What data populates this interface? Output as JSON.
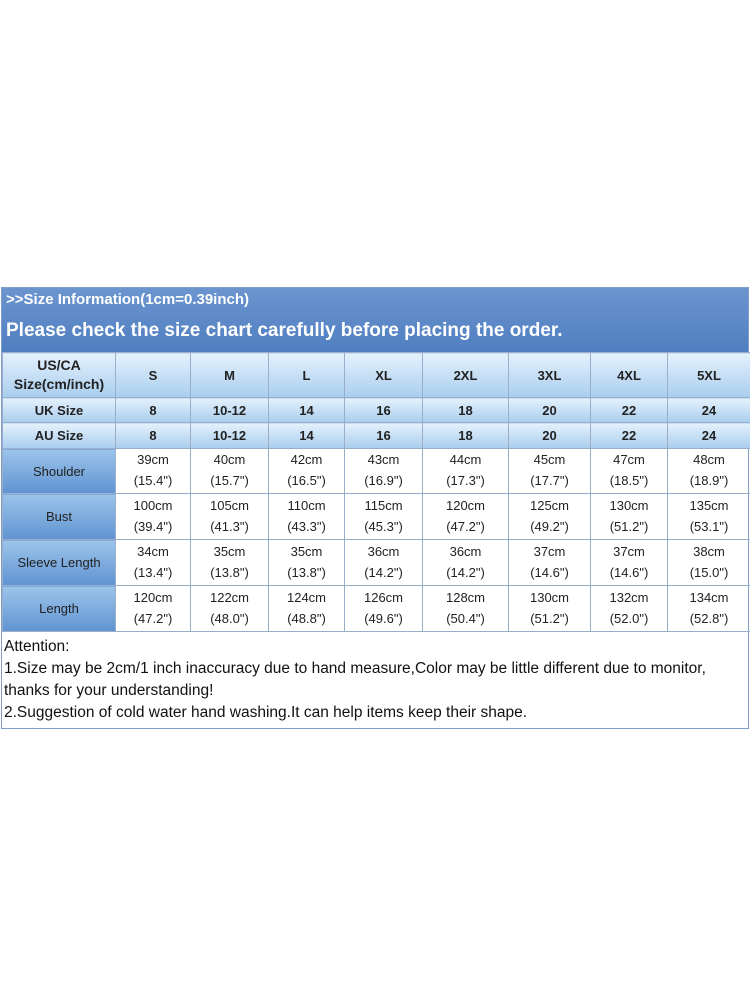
{
  "banner": {
    "info": ">>Size Information(1cm=0.39inch)",
    "check": "Please check the size chart carefully before placing the order."
  },
  "table": {
    "corner_line1": "US/CA",
    "corner_line2": "Size(cm/inch)",
    "sizes": [
      "S",
      "M",
      "L",
      "XL",
      "2XL",
      "3XL",
      "4XL",
      "5XL"
    ],
    "uk_label": "UK Size",
    "uk": [
      "8",
      "10-12",
      "14",
      "16",
      "18",
      "20",
      "22",
      "24"
    ],
    "au_label": "AU Size",
    "au": [
      "8",
      "10-12",
      "14",
      "16",
      "18",
      "20",
      "22",
      "24"
    ],
    "measures": [
      {
        "label": "Shoulder",
        "cm": [
          "39cm",
          "40cm",
          "42cm",
          "43cm",
          "44cm",
          "45cm",
          "47cm",
          "48cm"
        ],
        "inch": [
          "(15.4\")",
          "(15.7\")",
          "(16.5\")",
          "(16.9\")",
          "(17.3\")",
          "(17.7\")",
          "(18.5\")",
          "(18.9\")"
        ]
      },
      {
        "label": "Bust",
        "cm": [
          "100cm",
          "105cm",
          "110cm",
          "115cm",
          "120cm",
          "125cm",
          "130cm",
          "135cm"
        ],
        "inch": [
          "(39.4\")",
          "(41.3\")",
          "(43.3\")",
          "(45.3\")",
          "(47.2\")",
          "(49.2\")",
          "(51.2\")",
          "(53.1\")"
        ]
      },
      {
        "label": "Sleeve Length",
        "cm": [
          "34cm",
          "35cm",
          "35cm",
          "36cm",
          "36cm",
          "37cm",
          "37cm",
          "38cm"
        ],
        "inch": [
          "(13.4\")",
          "(13.8\")",
          "(13.8\")",
          "(14.2\")",
          "(14.2\")",
          "(14.6\")",
          "(14.6\")",
          "(15.0\")"
        ]
      },
      {
        "label": "Length",
        "cm": [
          "120cm",
          "122cm",
          "124cm",
          "126cm",
          "128cm",
          "130cm",
          "132cm",
          "134cm"
        ],
        "inch": [
          "(47.2\")",
          "(48.0\")",
          "(48.8\")",
          "(49.6\")",
          "(50.4\")",
          "(51.2\")",
          "(52.0\")",
          "(52.8\")"
        ]
      }
    ]
  },
  "notes": {
    "attention": "Attention:",
    "line1": "1.Size may be 2cm/1 inch inaccuracy due to hand measure,Color may be little different due to monitor,",
    "line2": "thanks for your understanding!",
    "line3": "2.Suggestion of cold water hand washing.It can help items keep their shape."
  }
}
